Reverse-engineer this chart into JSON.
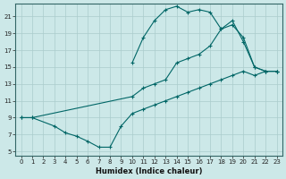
{
  "xlabel": "Humidex (Indice chaleur)",
  "bg_color": "#cce8e8",
  "line_color": "#006666",
  "grid_color": "#aacccc",
  "xlim": [
    -0.5,
    23.5
  ],
  "ylim": [
    4.5,
    22.5
  ],
  "xticks": [
    0,
    1,
    2,
    3,
    4,
    5,
    6,
    7,
    8,
    9,
    10,
    11,
    12,
    13,
    14,
    15,
    16,
    17,
    18,
    19,
    20,
    21,
    22,
    23
  ],
  "yticks": [
    5,
    7,
    9,
    11,
    13,
    15,
    17,
    19,
    21
  ],
  "curve_arch_x": [
    10,
    11,
    12,
    13,
    14,
    15,
    16,
    17,
    18,
    19,
    20,
    21,
    22,
    23
  ],
  "curve_arch_y": [
    15.5,
    18.5,
    20.5,
    21.8,
    22.2,
    21.5,
    21.8,
    21.5,
    19.5,
    20.0,
    18.5,
    15.0,
    14.5,
    14.5
  ],
  "curve_mid_x": [
    0,
    1,
    10,
    11,
    12,
    13,
    14,
    15,
    16,
    17,
    18,
    19,
    20,
    21,
    22,
    23
  ],
  "curve_mid_y": [
    9.0,
    9.0,
    11.5,
    12.5,
    13.0,
    13.5,
    15.5,
    16.0,
    16.5,
    17.5,
    19.5,
    20.5,
    18.0,
    15.0,
    14.5,
    14.5
  ],
  "curve_low_x": [
    0,
    1,
    3,
    4,
    5,
    6,
    7,
    8,
    9,
    10,
    11,
    12,
    13,
    14,
    15,
    16,
    17,
    18,
    19,
    20,
    21,
    22,
    23
  ],
  "curve_low_y": [
    9.0,
    9.0,
    8.0,
    7.2,
    6.8,
    6.2,
    5.5,
    5.5,
    8.0,
    9.5,
    10.0,
    10.5,
    11.0,
    11.5,
    12.0,
    12.5,
    13.0,
    13.5,
    14.0,
    14.5,
    14.0,
    14.5,
    14.5
  ]
}
